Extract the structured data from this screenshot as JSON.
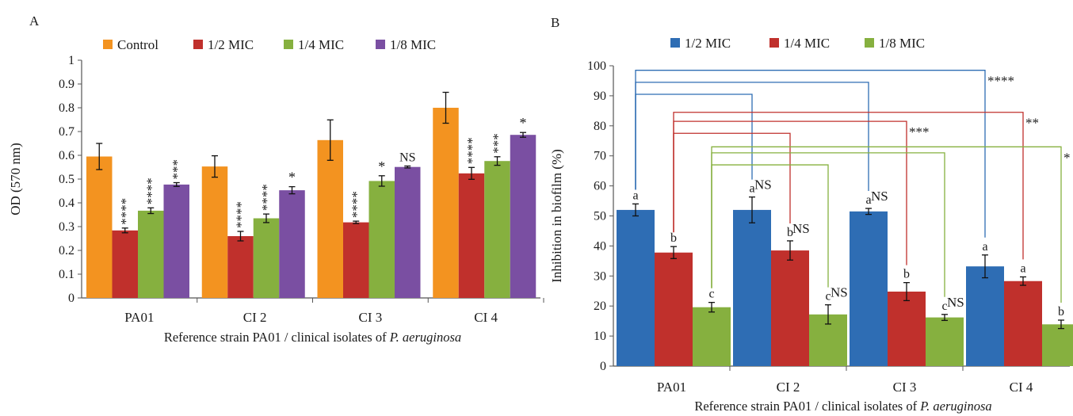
{
  "chart_data": [
    {
      "panel_label": "A",
      "type": "bar",
      "categories": [
        "PA01",
        "CI 2",
        "CI 3",
        "CI 4"
      ],
      "ylabel": "OD (570 nm)",
      "xlabel_prefix": "Reference strain PA01 / clinical isolates of ",
      "xlabel_italic": "P. aeruginosa",
      "ylim": [
        0,
        1
      ],
      "yticks": [
        "0",
        "0.1",
        "0.2",
        "0.3",
        "0.4",
        "0.5",
        "0.6",
        "0.7",
        "0.8",
        "0.9",
        "1"
      ],
      "legend_position": "top",
      "series": [
        {
          "name": "Control",
          "color": "#f39320",
          "values": [
            0.595,
            0.553,
            0.664,
            0.8
          ],
          "errors": [
            0.055,
            0.045,
            0.085,
            0.065
          ],
          "labels": [
            "",
            "",
            "",
            ""
          ]
        },
        {
          "name": "1/2 MIC",
          "color": "#c0302c",
          "values": [
            0.284,
            0.26,
            0.318,
            0.524
          ],
          "errors": [
            0.01,
            0.02,
            0.005,
            0.025
          ],
          "labels": [
            "****",
            "****",
            "****",
            "****"
          ]
        },
        {
          "name": "1/4 MIC",
          "color": "#86b03f",
          "values": [
            0.367,
            0.335,
            0.492,
            0.576
          ],
          "errors": [
            0.012,
            0.018,
            0.022,
            0.018
          ],
          "labels": [
            "****",
            "****",
            "*",
            "***"
          ]
        },
        {
          "name": "1/8 MIC",
          "color": "#7a4fa2",
          "values": [
            0.477,
            0.453,
            0.551,
            0.686
          ],
          "errors": [
            0.008,
            0.015,
            0.004,
            0.01
          ],
          "labels": [
            "***",
            "*",
            "NS",
            "*"
          ]
        }
      ]
    },
    {
      "panel_label": "B",
      "type": "bar",
      "categories": [
        "PA01",
        "CI 2",
        "CI 3",
        "CI 4"
      ],
      "ylabel": "Inhibition in biofilm (%)",
      "xlabel_prefix": "Reference strain PA01 / clinical isolates of ",
      "xlabel_italic": "P. aeruginosa",
      "ylim": [
        0,
        100
      ],
      "yticks": [
        "0",
        "10",
        "20",
        "30",
        "40",
        "50",
        "60",
        "70",
        "80",
        "90",
        "100"
      ],
      "legend_position": "top",
      "series": [
        {
          "name": "1/2 MIC",
          "color": "#2e6db4",
          "values": [
            52,
            52,
            51.5,
            33.2
          ],
          "errors": [
            2,
            4.3,
            1,
            3.8
          ],
          "labels": [
            "a",
            "a",
            "a",
            "a"
          ]
        },
        {
          "name": "1/4 MIC",
          "color": "#c0302c",
          "values": [
            37.8,
            38.5,
            24.8,
            28.3
          ],
          "errors": [
            2,
            3.2,
            3,
            1.4
          ],
          "labels": [
            "b",
            "b",
            "b",
            "a"
          ]
        },
        {
          "name": "1/8 MIC",
          "color": "#86b03f",
          "values": [
            19.6,
            17.2,
            16.2,
            13.9
          ],
          "errors": [
            1.6,
            3.2,
            1,
            1.4
          ],
          "labels": [
            "c",
            "c",
            "c",
            "b"
          ]
        }
      ],
      "comparisons": [
        {
          "series": 0,
          "from": 0,
          "to": 1,
          "label": "NS",
          "level": 90.5
        },
        {
          "series": 0,
          "from": 0,
          "to": 2,
          "label": "NS",
          "level": 94.5
        },
        {
          "series": 0,
          "from": 0,
          "to": 3,
          "label": "****",
          "level": 98.5
        },
        {
          "series": 1,
          "from": 0,
          "to": 1,
          "label": "NS",
          "level": 77.5
        },
        {
          "series": 1,
          "from": 0,
          "to": 2,
          "label": "***",
          "level": 81.5
        },
        {
          "series": 1,
          "from": 0,
          "to": 3,
          "label": "**",
          "level": 84.5
        },
        {
          "series": 2,
          "from": 0,
          "to": 1,
          "label": "NS",
          "level": 67
        },
        {
          "series": 2,
          "from": 0,
          "to": 2,
          "label": "NS",
          "level": 71
        },
        {
          "series": 2,
          "from": 0,
          "to": 3,
          "label": "*",
          "level": 73
        }
      ]
    }
  ]
}
